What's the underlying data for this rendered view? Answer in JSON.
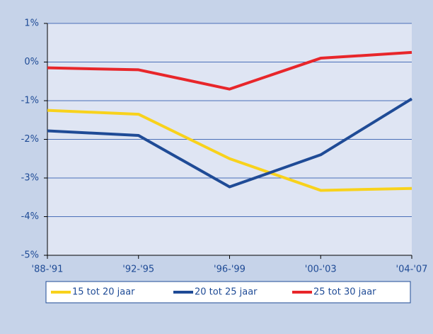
{
  "chart_data": {
    "type": "line",
    "categories": [
      "'88-'91",
      "'92-'95",
      "'96-'99",
      "'00-'03",
      "'04-'07"
    ],
    "series": [
      {
        "name": "15 tot 20 jaar",
        "color": "#f8d21c",
        "values": [
          -1.25,
          -1.35,
          -2.5,
          -3.32,
          -3.27
        ]
      },
      {
        "name": "20 tot 25 jaar",
        "color": "#1f4b96",
        "values": [
          -1.78,
          -1.9,
          -3.23,
          -2.4,
          -0.95
        ]
      },
      {
        "name": "25 tot 30 jaar",
        "color": "#e8262a",
        "values": [
          -0.15,
          -0.2,
          -0.7,
          0.1,
          0.25
        ]
      }
    ],
    "ylim": [
      -5,
      1
    ],
    "yticks": [
      {
        "value": -5,
        "label": "-5%"
      },
      {
        "value": -4,
        "label": "-4%"
      },
      {
        "value": -3,
        "label": "-3%"
      },
      {
        "value": -2,
        "label": "-2%"
      },
      {
        "value": -1,
        "label": "-1%"
      },
      {
        "value": 0,
        "label": "0%"
      },
      {
        "value": 1,
        "label": "1%"
      }
    ],
    "grid": true,
    "legend": "bottom"
  }
}
